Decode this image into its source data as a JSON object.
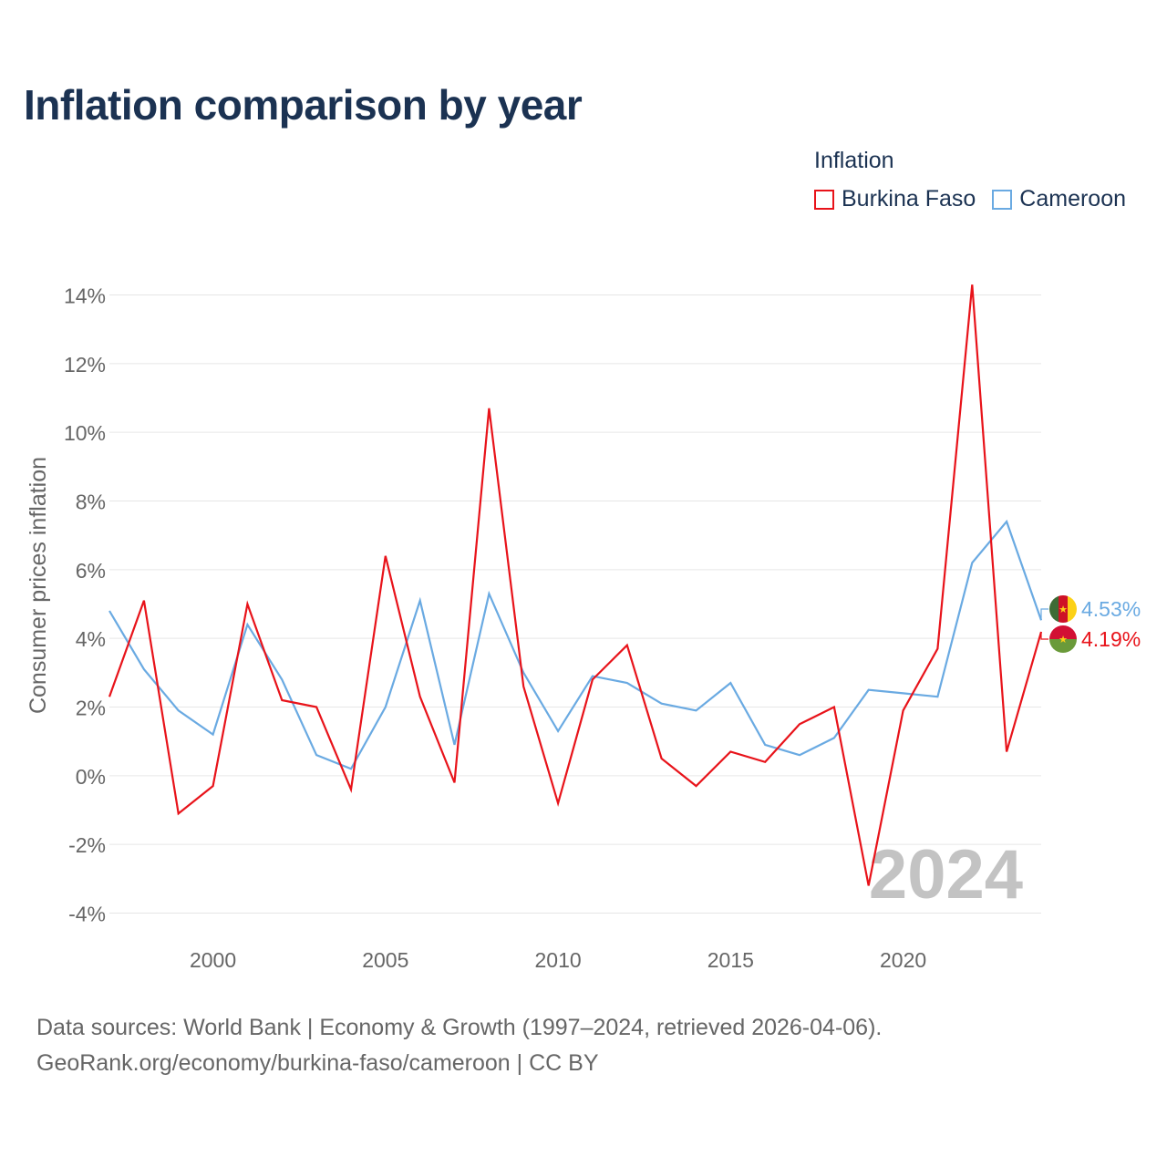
{
  "title": "Inflation comparison by year",
  "legend": {
    "title": "Inflation",
    "items": [
      {
        "label": "Burkina Faso",
        "color": "#e8131a"
      },
      {
        "label": "Cameroon",
        "color": "#6aaae2"
      }
    ]
  },
  "footer": {
    "line1": "Data sources: World Bank | Economy & Growth (1997–2024, retrieved 2026-04-06).",
    "line2": "GeoRank.org/economy/burkina-faso/cameroon | CC BY"
  },
  "chart_data": {
    "type": "line",
    "title": "Inflation comparison by year",
    "xlabel": "",
    "ylabel": "Consumer prices inflation",
    "xlim": [
      1997,
      2024
    ],
    "ylim": [
      -4,
      14
    ],
    "y_ticks": [
      -4,
      -2,
      0,
      2,
      4,
      6,
      8,
      10,
      12,
      14
    ],
    "y_tick_labels": [
      "-4%",
      "-2%",
      "0%",
      "2%",
      "4%",
      "6%",
      "8%",
      "10%",
      "12%",
      "14%"
    ],
    "x_ticks": [
      2000,
      2005,
      2010,
      2015,
      2020
    ],
    "x_tick_labels": [
      "2000",
      "2005",
      "2010",
      "2015",
      "2020"
    ],
    "watermark_year": "2024",
    "x": [
      1997,
      1998,
      1999,
      2000,
      2001,
      2002,
      2003,
      2004,
      2005,
      2006,
      2007,
      2008,
      2009,
      2010,
      2011,
      2012,
      2013,
      2014,
      2015,
      2016,
      2017,
      2018,
      2019,
      2020,
      2021,
      2022,
      2023,
      2024
    ],
    "series": [
      {
        "name": "Burkina Faso",
        "color": "#e8131a",
        "end_label": "4.19%",
        "values": [
          2.3,
          5.1,
          -1.1,
          -0.3,
          5.0,
          2.2,
          2.0,
          -0.4,
          6.4,
          2.3,
          -0.2,
          10.7,
          2.6,
          -0.8,
          2.8,
          3.8,
          0.5,
          -0.3,
          0.7,
          0.4,
          1.5,
          2.0,
          -3.2,
          1.9,
          3.7,
          14.3,
          0.7,
          4.19
        ]
      },
      {
        "name": "Cameroon",
        "color": "#6aaae2",
        "end_label": "4.53%",
        "values": [
          4.8,
          3.1,
          1.9,
          1.2,
          4.4,
          2.8,
          0.6,
          0.2,
          2.0,
          5.1,
          0.9,
          5.3,
          3.0,
          1.3,
          2.9,
          2.7,
          2.1,
          1.9,
          2.7,
          0.9,
          0.6,
          1.1,
          2.5,
          2.4,
          2.3,
          6.2,
          7.4,
          4.53
        ]
      }
    ]
  }
}
